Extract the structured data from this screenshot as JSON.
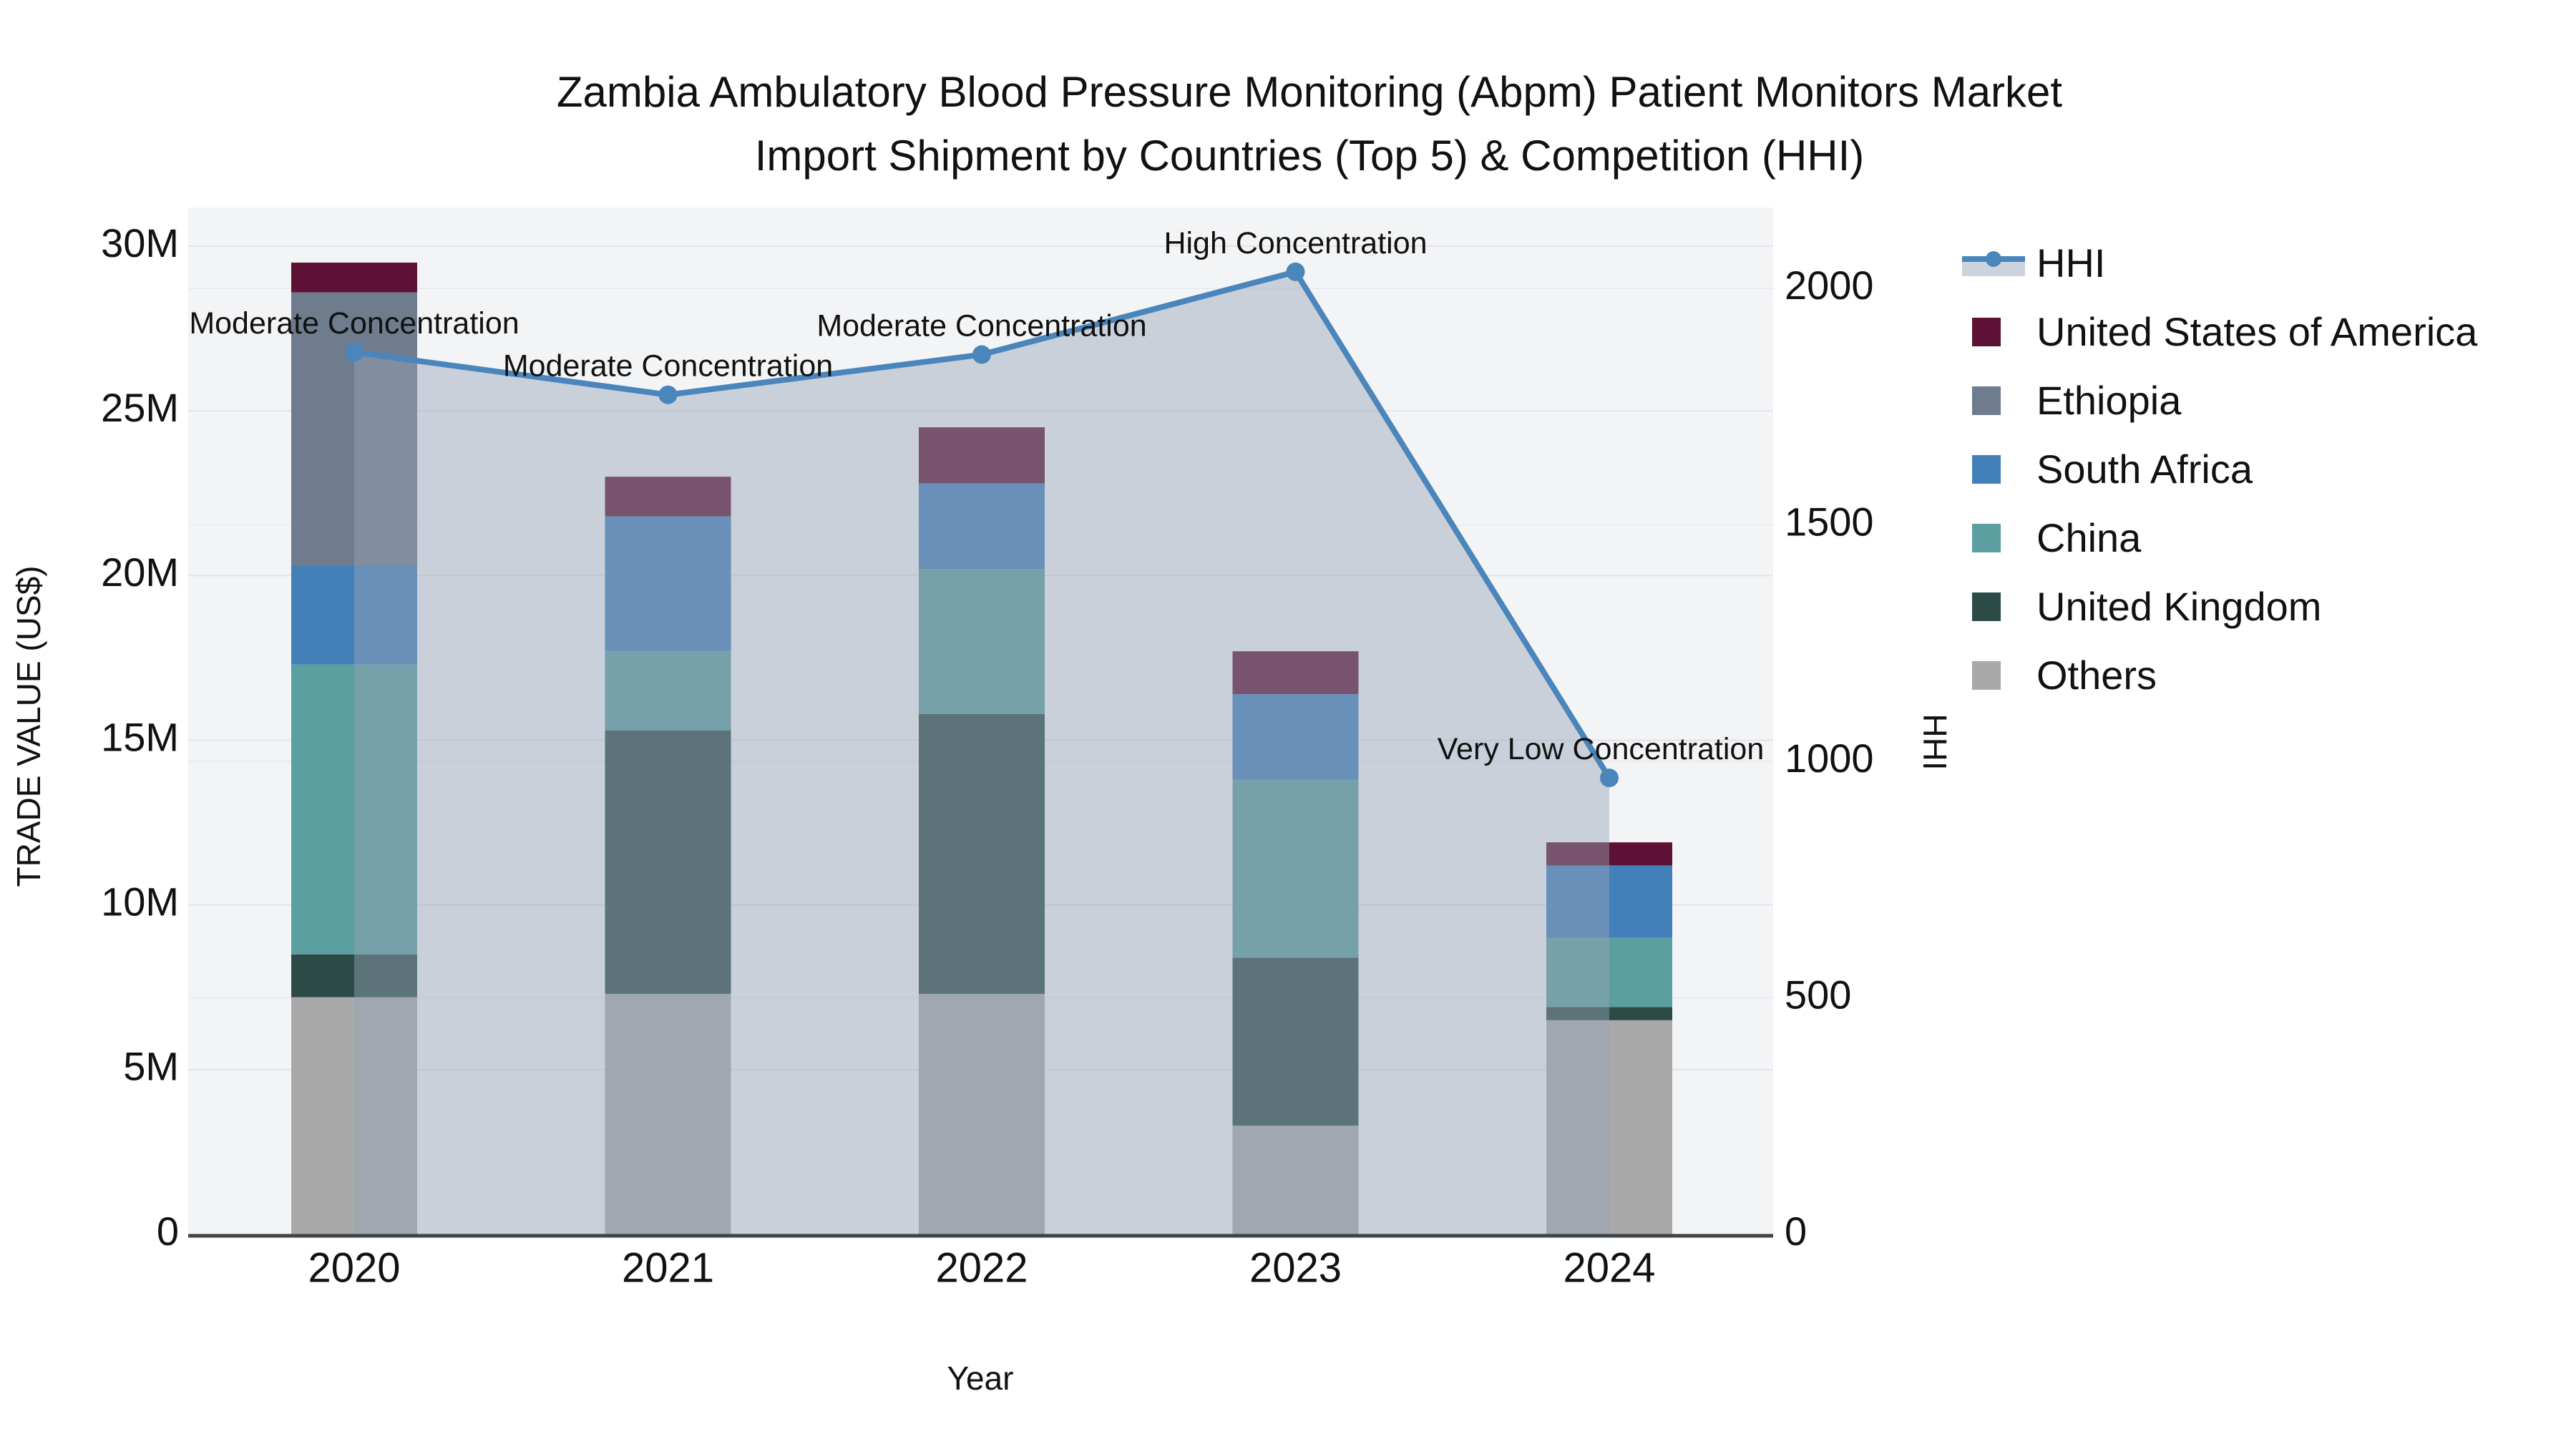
{
  "title": {
    "line1": "Zambia Ambulatory Blood Pressure Monitoring (Abpm) Patient Monitors Market",
    "line2": "Import Shipment by Countries (Top 5) & Competition (HHI)"
  },
  "axes": {
    "x": {
      "title": "Year",
      "categories": [
        "2020",
        "2021",
        "2022",
        "2023",
        "2024"
      ]
    },
    "y_left": {
      "title": "TRADE VALUE (US$)",
      "tick_labels": [
        "0",
        "5M",
        "10M",
        "15M",
        "20M",
        "25M",
        "30M"
      ],
      "tick_values": [
        0,
        5,
        10,
        15,
        20,
        25,
        30
      ]
    },
    "y_right": {
      "title": "HHI",
      "tick_labels": [
        "0",
        "500",
        "1000",
        "1500",
        "2000"
      ],
      "tick_values": [
        0,
        500,
        1000,
        1500,
        2000
      ]
    }
  },
  "legend": {
    "items": [
      {
        "label": "HHI",
        "type": "line",
        "color": "#4a85bb"
      },
      {
        "label": "United States of America",
        "type": "swatch",
        "color": "#5d1134"
      },
      {
        "label": "Ethiopia",
        "type": "swatch",
        "color": "#6e7c8e"
      },
      {
        "label": "South Africa",
        "type": "swatch",
        "color": "#4380ba"
      },
      {
        "label": "China",
        "type": "swatch",
        "color": "#5b9fa0"
      },
      {
        "label": "United Kingdom",
        "type": "swatch",
        "color": "#2c4b47"
      },
      {
        "label": "Others",
        "type": "swatch",
        "color": "#a9a9a9"
      }
    ]
  },
  "chart_data": {
    "type": "bar+line",
    "categories": [
      "2020",
      "2021",
      "2022",
      "2023",
      "2024"
    ],
    "bar_value_unit": "million US$",
    "series": [
      {
        "name": "Others",
        "color": "#a9a9a9",
        "values": [
          7.2,
          7.3,
          7.3,
          3.3,
          6.5
        ]
      },
      {
        "name": "United Kingdom",
        "color": "#2c4b47",
        "values": [
          1.3,
          8.0,
          8.5,
          5.1,
          0.4
        ]
      },
      {
        "name": "China",
        "color": "#5b9fa0",
        "values": [
          8.8,
          2.4,
          4.4,
          5.4,
          2.1
        ]
      },
      {
        "name": "South Africa",
        "color": "#4380ba",
        "values": [
          3.0,
          4.1,
          2.6,
          2.6,
          2.2
        ]
      },
      {
        "name": "Ethiopia",
        "color": "#6e7c8e",
        "values": [
          8.3,
          0.0,
          0.0,
          0.0,
          0.0
        ]
      },
      {
        "name": "United States of America",
        "color": "#5d1134",
        "values": [
          0.9,
          1.2,
          1.7,
          1.3,
          0.7
        ]
      }
    ],
    "stack_totals": [
      29.5,
      23.0,
      24.5,
      17.7,
      11.9
    ],
    "hhi_line": {
      "name": "HHI",
      "color": "#4a85bb",
      "area_fill": "rgba(150,163,182,0.45)",
      "yaxis": "right",
      "values": [
        1865,
        1775,
        1860,
        2035,
        965
      ]
    },
    "annotations": [
      {
        "category": "2020",
        "text": "Moderate Concentration"
      },
      {
        "category": "2021",
        "text": "Moderate Concentration"
      },
      {
        "category": "2022",
        "text": "Moderate Concentration"
      },
      {
        "category": "2023",
        "text": "High Concentration"
      },
      {
        "category": "2024",
        "text": "Very Low Concentration"
      }
    ],
    "ylim_left": [
      0,
      31.2
    ],
    "ylim_right": [
      0,
      2170
    ],
    "grid": true,
    "legend_position": "right"
  },
  "colors": {
    "plot_bg": "#f3f4f6",
    "grid_left": "#e2e4e8",
    "grid_right": "#e9ebee",
    "axis_line": "#3f4347",
    "text": "#111111"
  }
}
